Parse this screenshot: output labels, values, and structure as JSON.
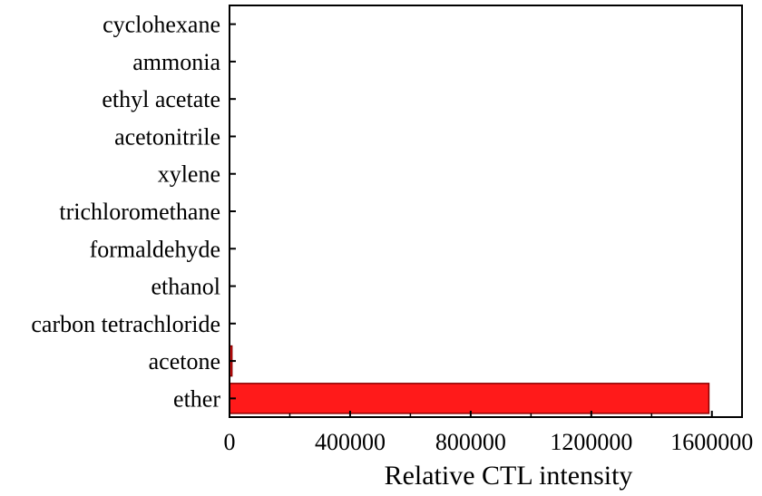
{
  "chart_data": {
    "type": "bar",
    "orientation": "horizontal",
    "categories": [
      "cyclohexane",
      "ammonia",
      "ethyl acetate",
      "acetonitrile",
      "xylene",
      "trichloromethane",
      "formaldehyde",
      "ethanol",
      "carbon tetrachloride",
      "acetone",
      "ether"
    ],
    "values": [
      0,
      0,
      0,
      0,
      0,
      0,
      0,
      0,
      0,
      8000,
      1590000
    ],
    "xticks": [
      0,
      400000,
      800000,
      1200000,
      1600000
    ],
    "xlim": [
      0,
      1700000
    ],
    "xlabel": "Relative CTL intensity",
    "ylabel": "",
    "title": "",
    "grid": false,
    "legend": "none",
    "bar_color": "#ff1a1a",
    "bar_edge_color": "#8b0000"
  }
}
